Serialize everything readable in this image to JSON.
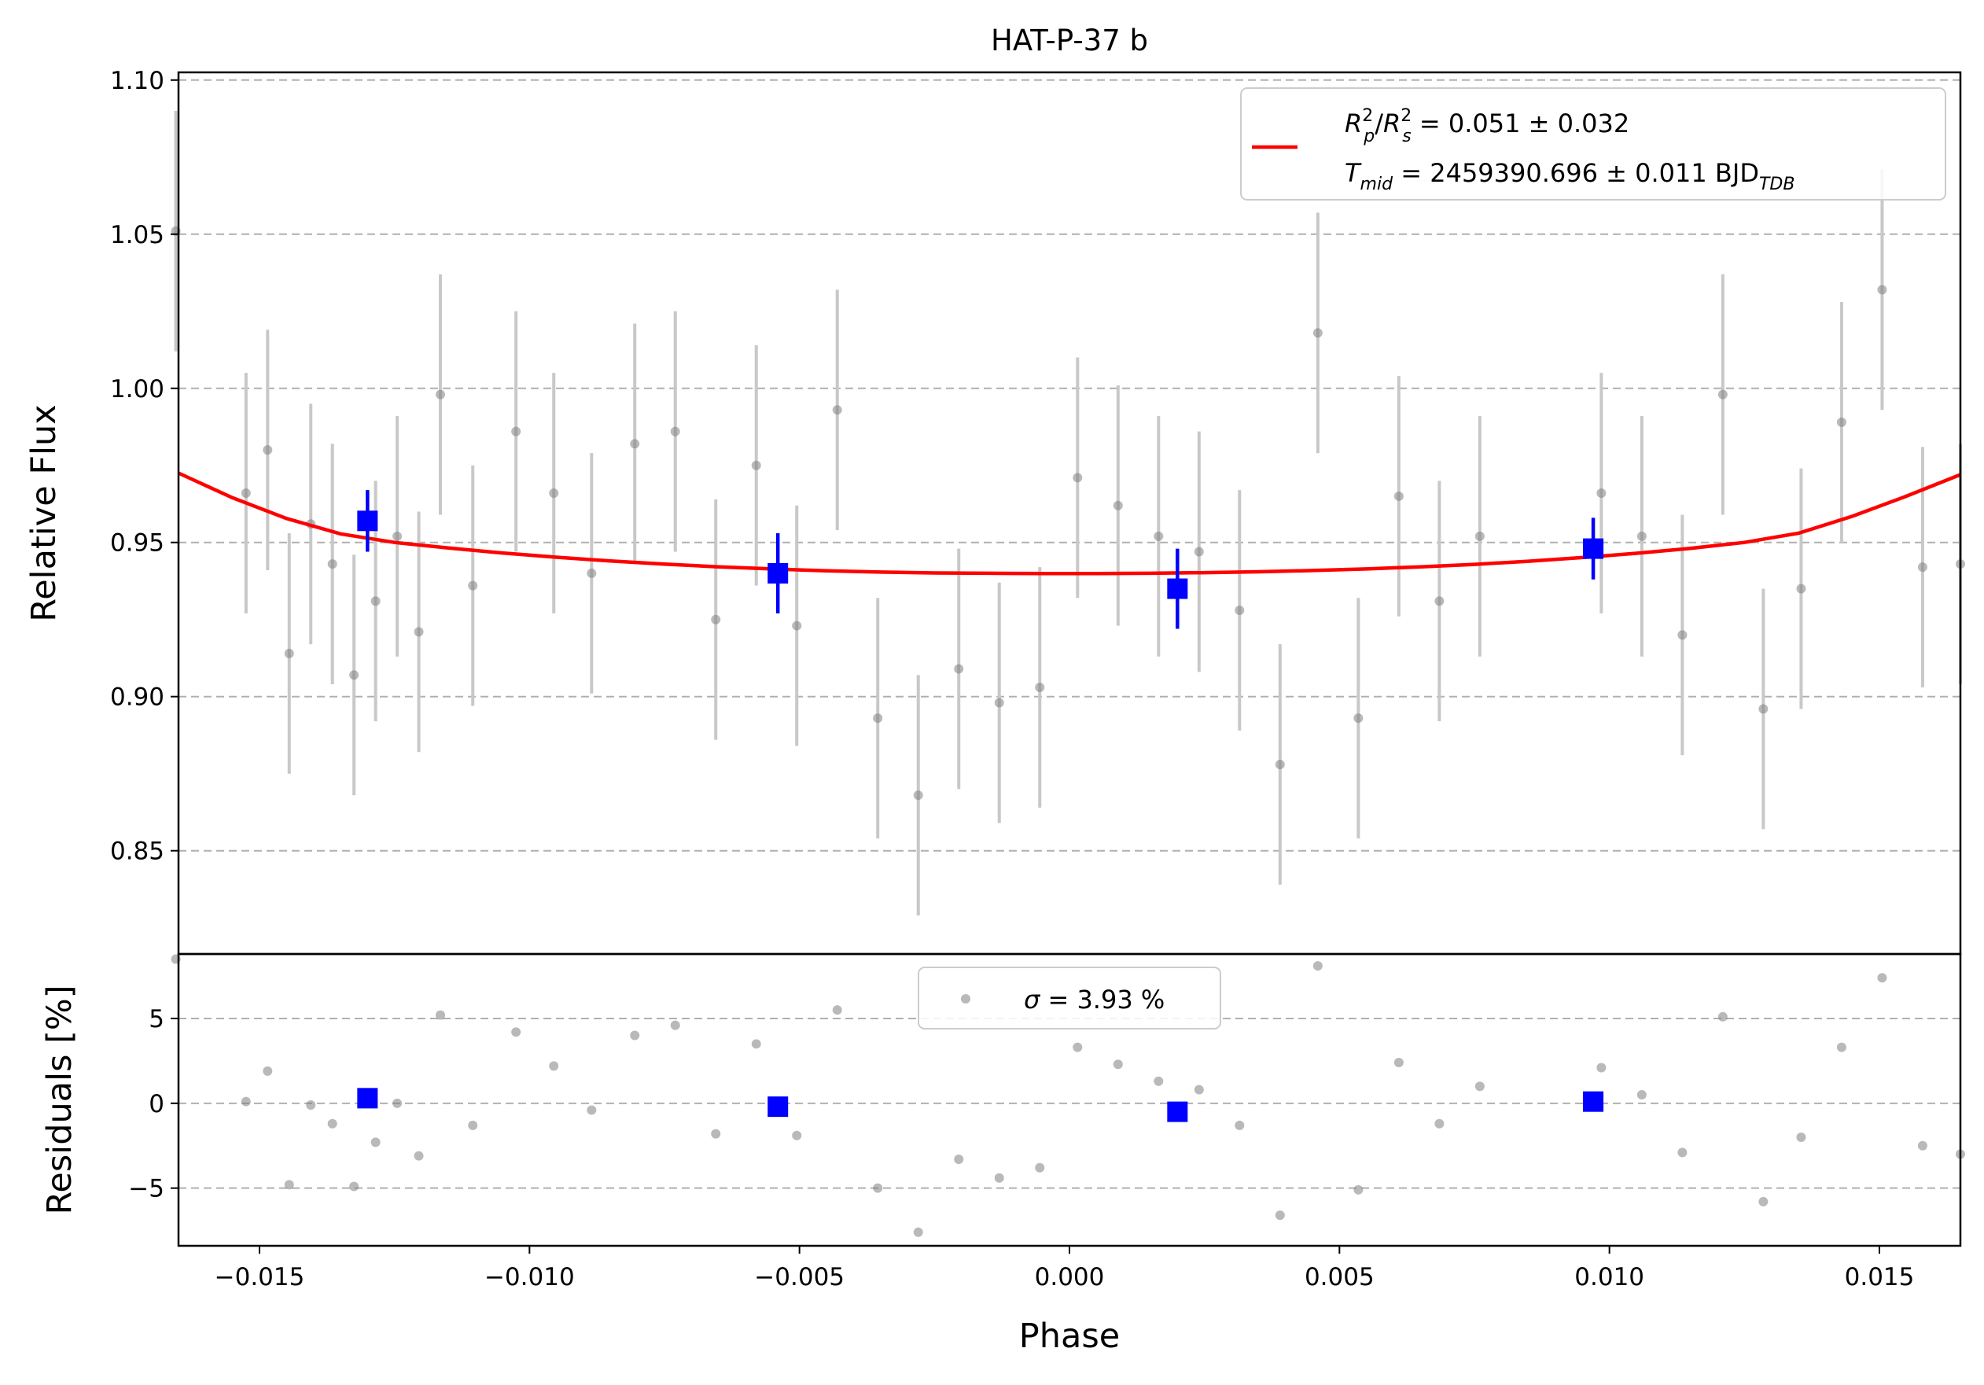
{
  "chart_data": {
    "type": "scatter",
    "title": "HAT-P-37 b",
    "xlabel": "Phase",
    "colors": {
      "raw": "#808080",
      "errorbar": "#c8c8c8",
      "binned": "#0000ff",
      "model": "#ff0000",
      "grid": "#b0b0b0"
    },
    "xlim": [
      -0.0165,
      0.0165
    ],
    "x_ticks": [
      -0.015,
      -0.01,
      -0.005,
      0.0,
      0.005,
      0.01,
      0.015
    ],
    "x_tick_labels": [
      "−0.015",
      "−0.010",
      "−0.005",
      "0.000",
      "0.005",
      "0.010",
      "0.015"
    ],
    "grid": true,
    "panels": {
      "flux": {
        "ylabel": "Relative Flux",
        "ylim": [
          0.8165,
          1.1025
        ],
        "y_ticks": [
          0.85,
          0.9,
          0.95,
          1.0,
          1.05,
          1.1
        ],
        "y_tick_labels": [
          "0.85",
          "0.90",
          "0.95",
          "1.00",
          "1.05",
          "1.10"
        ],
        "legend": {
          "placement": "top-right",
          "line1": {
            "prefix_r": "R",
            "sub_p": "p",
            "sup_2a": "2",
            "slash": "/",
            "prefix_r2": "R",
            "sub_s": "s",
            "sup_2b": "2",
            "rest": " = 0.051 ± 0.032"
          },
          "line2": {
            "t": "T",
            "sub_mid": "mid",
            "rest": " = 2459390.696 ± 0.011 BJD",
            "sub_tdb": "TDB"
          }
        }
      },
      "residuals": {
        "ylabel": "Residuals [%]",
        "ylim": [
          -8.4,
          8.8
        ],
        "y_ticks": [
          -5,
          0,
          5
        ],
        "y_tick_labels": [
          "−5",
          "0",
          "5"
        ],
        "legend": {
          "placement": "top-center",
          "sigma": "σ",
          "rest": " = 3.93 %"
        }
      }
    },
    "raw_points": [
      {
        "x": -0.01655,
        "y": 1.051,
        "err": 0.039,
        "res": 8.5
      },
      {
        "x": -0.01525,
        "y": 0.966,
        "err": 0.039,
        "res": 0.1
      },
      {
        "x": -0.01485,
        "y": 0.98,
        "err": 0.039,
        "res": 1.9
      },
      {
        "x": -0.01445,
        "y": 0.914,
        "err": 0.039,
        "res": -4.8
      },
      {
        "x": -0.01405,
        "y": 0.956,
        "err": 0.039,
        "res": -0.1
      },
      {
        "x": -0.01365,
        "y": 0.943,
        "err": 0.039,
        "res": -1.2
      },
      {
        "x": -0.01325,
        "y": 0.907,
        "err": 0.039,
        "res": -4.9
      },
      {
        "x": -0.01285,
        "y": 0.931,
        "err": 0.039,
        "res": -2.3
      },
      {
        "x": -0.01245,
        "y": 0.952,
        "err": 0.039,
        "res": 0.0
      },
      {
        "x": -0.01205,
        "y": 0.921,
        "err": 0.039,
        "res": -3.1
      },
      {
        "x": -0.01165,
        "y": 0.998,
        "err": 0.039,
        "res": 5.2
      },
      {
        "x": -0.01105,
        "y": 0.936,
        "err": 0.039,
        "res": -1.3
      },
      {
        "x": -0.01025,
        "y": 0.986,
        "err": 0.039,
        "res": 4.2
      },
      {
        "x": -0.00955,
        "y": 0.966,
        "err": 0.039,
        "res": 2.2
      },
      {
        "x": -0.00885,
        "y": 0.94,
        "err": 0.039,
        "res": -0.4
      },
      {
        "x": -0.00805,
        "y": 0.982,
        "err": 0.039,
        "res": 4.0
      },
      {
        "x": -0.0073,
        "y": 0.986,
        "err": 0.039,
        "res": 4.6
      },
      {
        "x": -0.00655,
        "y": 0.925,
        "err": 0.039,
        "res": -1.8
      },
      {
        "x": -0.0058,
        "y": 0.975,
        "err": 0.039,
        "res": 3.5
      },
      {
        "x": -0.00505,
        "y": 0.923,
        "err": 0.039,
        "res": -1.9
      },
      {
        "x": -0.0043,
        "y": 0.993,
        "err": 0.039,
        "res": 5.5
      },
      {
        "x": -0.00355,
        "y": 0.893,
        "err": 0.039,
        "res": -5.0
      },
      {
        "x": -0.0028,
        "y": 0.868,
        "err": 0.039,
        "res": -7.6
      },
      {
        "x": -0.00205,
        "y": 0.909,
        "err": 0.039,
        "res": -3.3
      },
      {
        "x": -0.0013,
        "y": 0.898,
        "err": 0.039,
        "res": -4.4
      },
      {
        "x": -0.00055,
        "y": 0.903,
        "err": 0.039,
        "res": -3.8
      },
      {
        "x": 0.00015,
        "y": 0.971,
        "err": 0.039,
        "res": 3.3
      },
      {
        "x": 0.0009,
        "y": 0.962,
        "err": 0.039,
        "res": 2.3
      },
      {
        "x": 0.00165,
        "y": 0.952,
        "err": 0.039,
        "res": 1.3
      },
      {
        "x": 0.0024,
        "y": 0.947,
        "err": 0.039,
        "res": 0.8
      },
      {
        "x": 0.00315,
        "y": 0.928,
        "err": 0.039,
        "res": -1.3
      },
      {
        "x": 0.0039,
        "y": 0.878,
        "err": 0.039,
        "res": -6.6
      },
      {
        "x": 0.0046,
        "y": 1.018,
        "err": 0.039,
        "res": 8.1
      },
      {
        "x": 0.00535,
        "y": 0.893,
        "err": 0.039,
        "res": -5.1
      },
      {
        "x": 0.0061,
        "y": 0.965,
        "err": 0.039,
        "res": 2.4
      },
      {
        "x": 0.00685,
        "y": 0.931,
        "err": 0.039,
        "res": -1.2
      },
      {
        "x": 0.0076,
        "y": 0.952,
        "err": 0.039,
        "res": 1.0
      },
      {
        "x": 0.00985,
        "y": 0.966,
        "err": 0.039,
        "res": 2.1
      },
      {
        "x": 0.0106,
        "y": 0.952,
        "err": 0.039,
        "res": 0.5
      },
      {
        "x": 0.01135,
        "y": 0.92,
        "err": 0.039,
        "res": -2.9
      },
      {
        "x": 0.0121,
        "y": 0.998,
        "err": 0.039,
        "res": 5.1
      },
      {
        "x": 0.01285,
        "y": 0.896,
        "err": 0.039,
        "res": -5.8
      },
      {
        "x": 0.01355,
        "y": 0.935,
        "err": 0.039,
        "res": -2.0
      },
      {
        "x": 0.0143,
        "y": 0.989,
        "err": 0.039,
        "res": 3.3
      },
      {
        "x": 0.01505,
        "y": 1.032,
        "err": 0.039,
        "res": 7.4
      },
      {
        "x": 0.0158,
        "y": 0.942,
        "err": 0.039,
        "res": -2.5
      },
      {
        "x": 0.0165,
        "y": 0.943,
        "err": 0.039,
        "res": -3.0
      }
    ],
    "binned_points": [
      {
        "x": -0.013,
        "y": 0.957,
        "err": 0.01,
        "res": 0.3
      },
      {
        "x": -0.0054,
        "y": 0.94,
        "err": 0.013,
        "res": -0.2
      },
      {
        "x": 0.002,
        "y": 0.935,
        "err": 0.013,
        "res": -0.5
      },
      {
        "x": 0.0097,
        "y": 0.948,
        "err": 0.01,
        "res": 0.1
      }
    ],
    "model": {
      "name": "model",
      "x": [
        -0.0165,
        -0.0155,
        -0.0145,
        -0.0135,
        -0.0125,
        -0.0115,
        -0.0105,
        -0.0095,
        -0.0085,
        -0.0075,
        -0.0065,
        -0.0055,
        -0.0045,
        -0.0035,
        -0.0025,
        -0.0015,
        -0.0005,
        0.0005,
        0.0015,
        0.0025,
        0.0035,
        0.0045,
        0.0055,
        0.0065,
        0.0075,
        0.0085,
        0.0095,
        0.0105,
        0.0115,
        0.0125,
        0.0135,
        0.0145,
        0.0155,
        0.0165
      ],
      "y": [
        0.9725,
        0.9645,
        0.9578,
        0.9528,
        0.95,
        0.9482,
        0.9466,
        0.9452,
        0.944,
        0.943,
        0.9421,
        0.9414,
        0.9408,
        0.9404,
        0.9401,
        0.94,
        0.9399,
        0.9399,
        0.94,
        0.9402,
        0.9405,
        0.9409,
        0.9414,
        0.9421,
        0.9429,
        0.9439,
        0.9451,
        0.9465,
        0.9481,
        0.95,
        0.953,
        0.9585,
        0.965,
        0.972
      ]
    }
  }
}
